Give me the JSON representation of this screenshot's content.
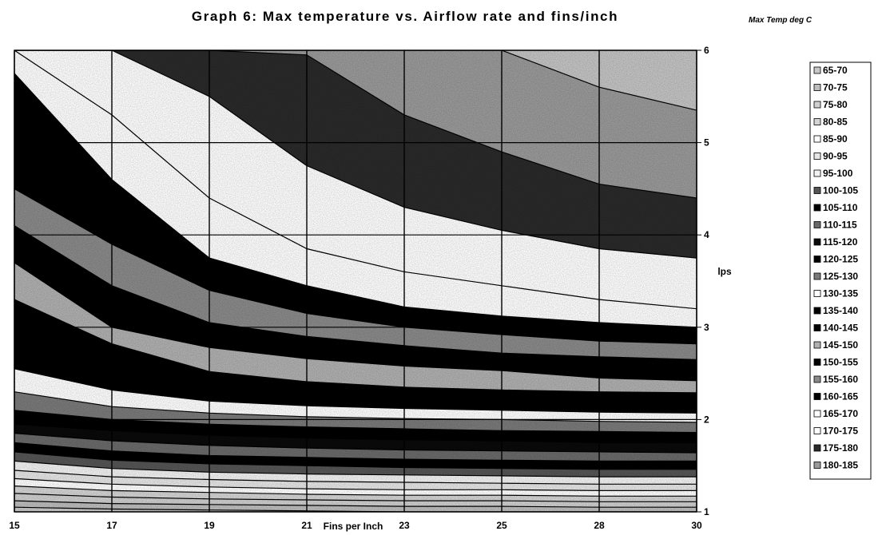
{
  "chart_data": {
    "type": "area",
    "title": "Graph 6: Max temperature vs. Airflow rate and fins/inch",
    "xlabel": "Fins per Inch",
    "ylabel": "lps",
    "x": [
      15,
      17,
      19,
      21,
      23,
      25,
      28,
      30
    ],
    "x_tick_labels": [
      "15",
      "17",
      "19",
      "21",
      "23",
      "25",
      "28",
      "30"
    ],
    "y_tick_labels": [
      "1",
      "2",
      "3",
      "4",
      "5",
      "6"
    ],
    "ylim": [
      1,
      6
    ],
    "grid": true,
    "legend_title": "Max Temp deg C",
    "legend_position": "right",
    "series": [
      {
        "name": "65-70",
        "fill": "#c8c8c8"
      },
      {
        "name": "70-75",
        "fill": "#bdbdbd"
      },
      {
        "name": "75-80",
        "fill": "#cfcfcf"
      },
      {
        "name": "80-85",
        "fill": "#d4d4d4"
      },
      {
        "name": "85-90",
        "fill": "#ffffff"
      },
      {
        "name": "90-95",
        "fill": "#e6e6e6"
      },
      {
        "name": "95-100",
        "fill": "#f2f2f2"
      },
      {
        "name": "100-105",
        "fill": "#555555"
      },
      {
        "name": "105-110",
        "fill": "#000000"
      },
      {
        "name": "110-115",
        "fill": "#6a6a6a"
      },
      {
        "name": "115-120",
        "fill": "#0a0a0a"
      },
      {
        "name": "120-125",
        "fill": "#000000"
      },
      {
        "name": "125-130",
        "fill": "#7a7a7a"
      },
      {
        "name": "130-135",
        "fill": "#ffffff"
      },
      {
        "name": "135-140",
        "fill": "#000000"
      },
      {
        "name": "140-145",
        "fill": "#000000"
      },
      {
        "name": "145-150",
        "fill": "#b0b0b0"
      },
      {
        "name": "150-155",
        "fill": "#000000"
      },
      {
        "name": "155-160",
        "fill": "#8a8a8a"
      },
      {
        "name": "160-165",
        "fill": "#000000"
      },
      {
        "name": "165-170",
        "fill": "#ffffff"
      },
      {
        "name": "170-175",
        "fill": "#ffffff"
      },
      {
        "name": "175-180",
        "fill": "#2a2a2a"
      },
      {
        "name": "180-185",
        "fill": "#9a9a9a"
      }
    ],
    "boundary_curves": [
      [
        1.05,
        1.03,
        1.02,
        1.01,
        1.0,
        1.0,
        1.0,
        1.0
      ],
      [
        1.12,
        1.09,
        1.08,
        1.07,
        1.06,
        1.06,
        1.05,
        1.05
      ],
      [
        1.2,
        1.16,
        1.14,
        1.13,
        1.12,
        1.12,
        1.11,
        1.11
      ],
      [
        1.28,
        1.23,
        1.21,
        1.19,
        1.18,
        1.18,
        1.17,
        1.17
      ],
      [
        1.36,
        1.3,
        1.27,
        1.25,
        1.24,
        1.24,
        1.23,
        1.23
      ],
      [
        1.45,
        1.38,
        1.35,
        1.33,
        1.32,
        1.31,
        1.3,
        1.3
      ],
      [
        1.55,
        1.47,
        1.43,
        1.41,
        1.4,
        1.39,
        1.38,
        1.38
      ],
      [
        1.65,
        1.56,
        1.52,
        1.5,
        1.48,
        1.47,
        1.46,
        1.46
      ],
      [
        1.75,
        1.66,
        1.61,
        1.59,
        1.57,
        1.56,
        1.55,
        1.55
      ],
      [
        1.85,
        1.77,
        1.72,
        1.69,
        1.67,
        1.66,
        1.65,
        1.64
      ],
      [
        1.95,
        1.88,
        1.83,
        1.8,
        1.78,
        1.77,
        1.75,
        1.75
      ],
      [
        2.1,
        2.0,
        1.95,
        1.92,
        1.9,
        1.88,
        1.87,
        1.86
      ],
      [
        2.3,
        2.14,
        2.07,
        2.03,
        2.01,
        2.0,
        1.98,
        1.97
      ],
      [
        2.55,
        2.32,
        2.2,
        2.15,
        2.12,
        2.1,
        2.08,
        2.07
      ],
      [
        2.85,
        2.55,
        2.35,
        2.27,
        2.23,
        2.21,
        2.19,
        2.18
      ],
      [
        3.3,
        2.82,
        2.52,
        2.41,
        2.35,
        2.32,
        2.3,
        2.29
      ],
      [
        3.7,
        3.0,
        2.78,
        2.66,
        2.58,
        2.53,
        2.45,
        2.42
      ],
      [
        4.1,
        3.45,
        3.05,
        2.9,
        2.8,
        2.72,
        2.68,
        2.65
      ],
      [
        4.5,
        3.9,
        3.4,
        3.15,
        3.0,
        2.92,
        2.85,
        2.82
      ],
      [
        5.75,
        4.6,
        3.75,
        3.45,
        3.22,
        3.12,
        3.05,
        3.0
      ],
      [
        6.0,
        5.3,
        4.4,
        3.85,
        3.6,
        3.45,
        3.3,
        3.2
      ],
      [
        6.0,
        6.0,
        5.5,
        4.75,
        4.3,
        4.05,
        3.85,
        3.75
      ],
      [
        6.0,
        6.0,
        6.0,
        5.95,
        5.3,
        4.9,
        4.55,
        4.4
      ],
      [
        6.0,
        6.0,
        6.0,
        6.0,
        6.0,
        6.0,
        5.6,
        5.35
      ]
    ]
  }
}
